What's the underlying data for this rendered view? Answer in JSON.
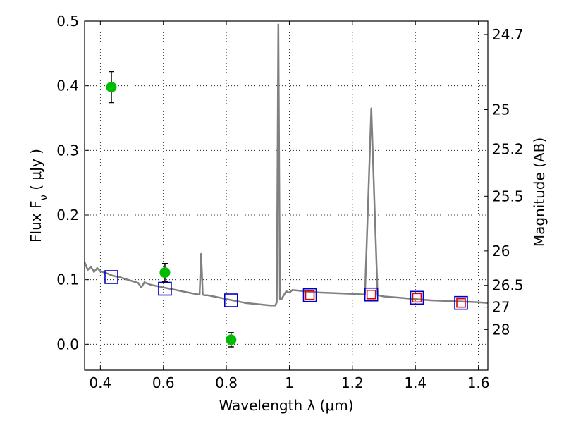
{
  "chart_data": {
    "type": "scatter",
    "xlabel": "Wavelength  λ (μm)",
    "ylabel": "Flux  F_ν  ( μJy )",
    "ylabel_right": "Magnitude (AB)",
    "xlim": [
      0.35,
      1.63
    ],
    "ylim": [
      -0.04,
      0.5
    ],
    "grid": true,
    "x_ticks": [
      0.4,
      0.6,
      0.8,
      1.0,
      1.2,
      1.4,
      1.6
    ],
    "x_tick_labels": [
      "0.4",
      "0.6",
      "0.8",
      "1",
      "1.2",
      "1.4",
      "1.6"
    ],
    "y_ticks": [
      0.0,
      0.1,
      0.2,
      0.3,
      0.4,
      0.5
    ],
    "y_tick_labels": [
      "0.0",
      "0.1",
      "0.2",
      "0.3",
      "0.4",
      "0.5"
    ],
    "right_ticks": [
      {
        "flux": 0.4794,
        "label": "24.7"
      },
      {
        "flux": 0.3631,
        "label": "25"
      },
      {
        "flux": 0.302,
        "label": "25.2"
      },
      {
        "flux": 0.2291,
        "label": "25.5"
      },
      {
        "flux": 0.1445,
        "label": "26"
      },
      {
        "flux": 0.0912,
        "label": "26.5"
      },
      {
        "flux": 0.0575,
        "label": "27"
      },
      {
        "flux": 0.0229,
        "label": "28"
      }
    ],
    "series": [
      {
        "style": "line",
        "color": "#808080",
        "x": [
          0.35,
          0.36,
          0.37,
          0.38,
          0.39,
          0.4,
          0.42,
          0.44,
          0.46,
          0.48,
          0.5,
          0.52,
          0.53,
          0.54,
          0.56,
          0.58,
          0.6,
          0.62,
          0.64,
          0.66,
          0.68,
          0.7,
          0.715,
          0.72,
          0.725,
          0.73,
          0.74,
          0.76,
          0.78,
          0.8,
          0.82,
          0.84,
          0.86,
          0.88,
          0.9,
          0.92,
          0.94,
          0.955,
          0.96,
          0.965,
          0.97,
          0.975,
          0.98,
          0.99,
          1.0,
          1.01,
          1.03,
          1.05,
          1.07,
          1.1,
          1.15,
          1.2,
          1.24,
          1.25,
          1.26,
          1.27,
          1.28,
          1.3,
          1.35,
          1.4,
          1.45,
          1.5,
          1.55,
          1.6,
          1.63
        ],
        "y": [
          0.127,
          0.115,
          0.12,
          0.112,
          0.118,
          0.113,
          0.11,
          0.106,
          0.104,
          0.101,
          0.098,
          0.095,
          0.088,
          0.096,
          0.092,
          0.09,
          0.088,
          0.086,
          0.084,
          0.082,
          0.08,
          0.078,
          0.077,
          0.14,
          0.077,
          0.076,
          0.076,
          0.074,
          0.072,
          0.07,
          0.068,
          0.066,
          0.064,
          0.063,
          0.062,
          0.061,
          0.06,
          0.06,
          0.065,
          0.495,
          0.07,
          0.07,
          0.074,
          0.082,
          0.08,
          0.084,
          0.083,
          0.082,
          0.081,
          0.08,
          0.079,
          0.078,
          0.077,
          0.22,
          0.365,
          0.22,
          0.076,
          0.074,
          0.072,
          0.07,
          0.068,
          0.067,
          0.066,
          0.065,
          0.064
        ]
      },
      {
        "style": "errorbar",
        "color": "#00bb00",
        "x": [
          0.435,
          0.605,
          0.815
        ],
        "y": [
          0.398,
          0.111,
          0.007
        ],
        "yerr": [
          0.024,
          0.014,
          0.011
        ]
      },
      {
        "style": "open-square",
        "color": "#0000cc",
        "x": [
          0.435,
          0.605,
          0.815,
          1.065,
          1.26,
          1.405,
          1.545
        ],
        "y": [
          0.104,
          0.086,
          0.068,
          0.076,
          0.077,
          0.072,
          0.064
        ]
      },
      {
        "style": "open-square",
        "color": "#dd0000",
        "x": [
          1.065,
          1.26,
          1.405,
          1.545
        ],
        "y": [
          0.076,
          0.077,
          0.072,
          0.064
        ]
      }
    ]
  }
}
